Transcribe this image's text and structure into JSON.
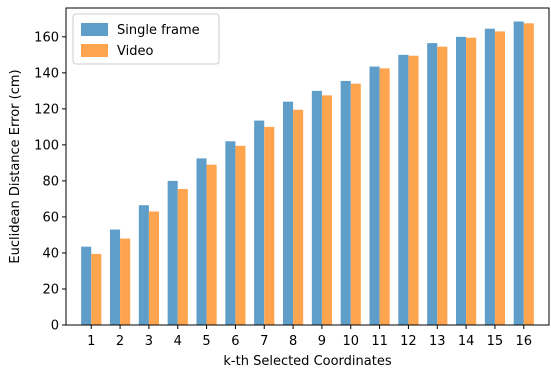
{
  "chart_data": {
    "type": "bar",
    "title": "",
    "xlabel": "k-th Selected Coordinates",
    "ylabel": "Euclidean Distance Error (cm)",
    "categories": [
      "1",
      "2",
      "3",
      "4",
      "5",
      "6",
      "7",
      "8",
      "9",
      "10",
      "11",
      "12",
      "13",
      "14",
      "15",
      "16"
    ],
    "series": [
      {
        "name": "Single frame",
        "color": "#5f9ec8",
        "values": [
          43.5,
          53,
          66.5,
          80,
          92.5,
          102,
          113.5,
          124,
          130,
          135.5,
          143.5,
          150,
          156.5,
          160,
          164.5,
          168.5
        ]
      },
      {
        "name": "Video",
        "color": "#ffa54f",
        "values": [
          39.5,
          48,
          63,
          75.5,
          89,
          99.5,
          110,
          119.5,
          127.5,
          134,
          142.5,
          149.5,
          154.5,
          159.5,
          163,
          167.5
        ]
      }
    ],
    "ylim": [
      0,
      176
    ],
    "yticks": [
      0,
      20,
      40,
      60,
      80,
      100,
      120,
      140,
      160
    ],
    "grid": false,
    "legend_position": "top-left"
  }
}
